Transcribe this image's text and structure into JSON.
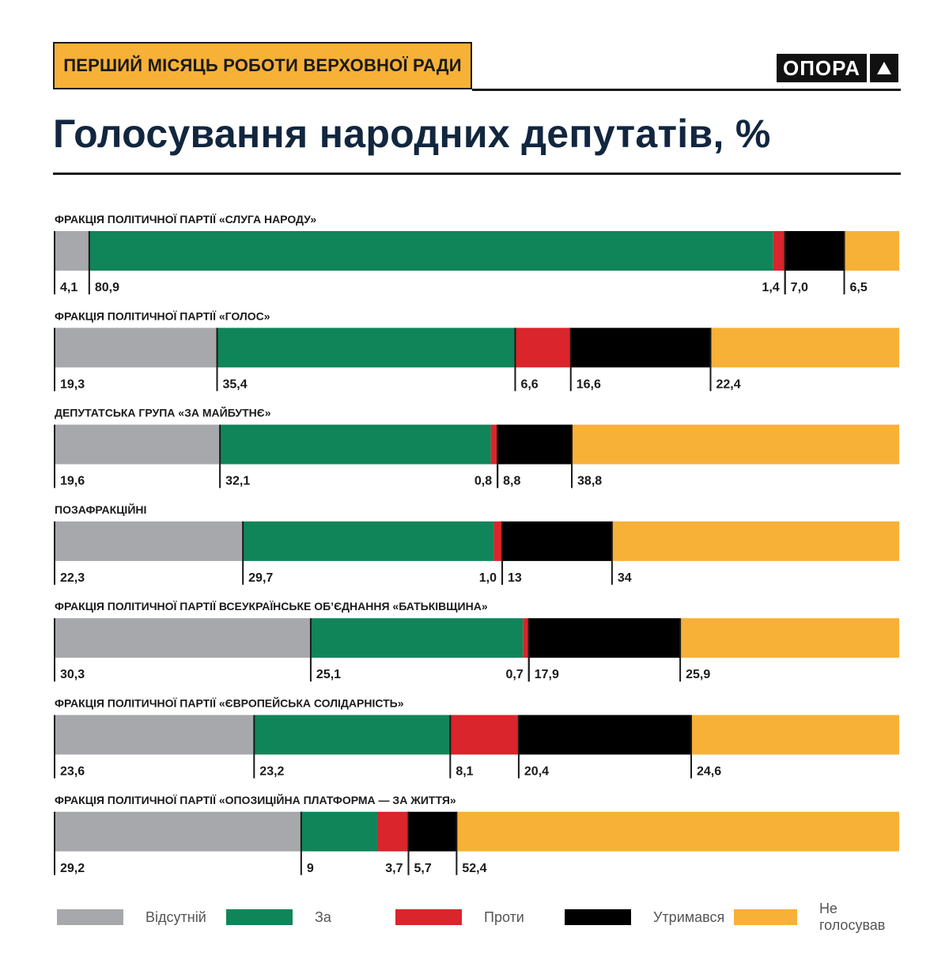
{
  "header": {
    "badge": "ПЕРШИЙ МІСЯЦЬ РОБОТИ ВЕРХОВНОЇ РАДИ",
    "logo": "ОПОРА",
    "logo_icon": "triangle-up-icon",
    "title": "Голосування народних депутатів, %"
  },
  "chart_data": {
    "type": "bar",
    "orientation": "horizontal-stacked-100",
    "title": "Голосування народних депутатів, %",
    "categories": [
      "ФРАКЦІЯ ПОЛІТИЧНОЇ ПАРТІЇ «СЛУГА НАРОДУ»",
      "ФРАКЦІЯ ПОЛІТИЧНОЇ ПАРТІЇ «ГОЛОС»",
      "ДЕПУТАТСЬКА ГРУПА «ЗА МАЙБУТНЄ»",
      "ПОЗАФРАКЦІЙНІ",
      "ФРАКЦІЯ ПОЛІТИЧНОЇ ПАРТІЇ ВСЕУКРАЇНСЬКЕ ОБ’ЄДНАННЯ «БАТЬКІВЩИНА»",
      "ФРАКЦІЯ ПОЛІТИЧНОЇ ПАРТІЇ «ЄВРОПЕЙСЬКА СОЛІДАРНІСТЬ»",
      "ФРАКЦІЯ ПОЛІТИЧНОЇ ПАРТІЇ «ОПОЗИЦІЙНА ПЛАТФОРМА — ЗА ЖИТТЯ»"
    ],
    "series": [
      {
        "name": "Відсутній",
        "color": "#a7a8ab",
        "values": [
          4.1,
          19.3,
          19.6,
          22.3,
          30.3,
          23.6,
          29.2
        ],
        "labels": [
          "4,1",
          "19,3",
          "19,6",
          "22,3",
          "30,3",
          "23,6",
          "29,2"
        ]
      },
      {
        "name": "За",
        "color": "#10855a",
        "values": [
          80.9,
          35.4,
          32.1,
          29.7,
          25.1,
          23.2,
          9
        ],
        "labels": [
          "80,9",
          "35,4",
          "32,1",
          "29,7",
          "25,1",
          "23,2",
          "9"
        ]
      },
      {
        "name": "Проти",
        "color": "#d9252b",
        "values": [
          1.4,
          6.6,
          0.8,
          1.0,
          0.7,
          8.1,
          3.7
        ],
        "labels": [
          "1,4",
          "6,6",
          "0,8",
          "1,0",
          "0,7",
          "8,1",
          "3,7"
        ]
      },
      {
        "name": "Утримався",
        "color": "#000000",
        "values": [
          7.0,
          16.6,
          8.8,
          13,
          17.9,
          20.4,
          5.7
        ],
        "labels": [
          "7,0",
          "16,6",
          "8,8",
          "13",
          "17,9",
          "20,4",
          "5,7"
        ]
      },
      {
        "name": "Не голосував",
        "color": "#f7b137",
        "values": [
          6.5,
          22.4,
          38.8,
          34,
          25.9,
          24.6,
          52.4
        ],
        "labels": [
          "6,5",
          "22,4",
          "38,8",
          "34",
          "25,9",
          "24,6",
          "52,4"
        ]
      }
    ],
    "legend": [
      "Відсутній",
      "За",
      "Проти",
      "Утримався",
      "Не голосував"
    ]
  }
}
